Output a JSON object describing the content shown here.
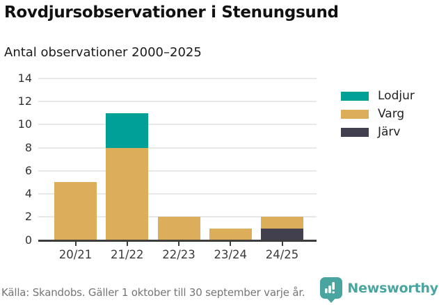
{
  "title": "Rovdjursobservationer i Stenungsund",
  "subtitle": "Antal observationer 2000–2025",
  "chart_data": {
    "type": "bar",
    "stacked": true,
    "title": "Rovdjursobservationer i Stenungsund",
    "subtitle": "Antal observationer 2000–2025",
    "categories": [
      "20/21",
      "21/22",
      "22/23",
      "23/24",
      "24/25"
    ],
    "series": [
      {
        "name": "Lodjur",
        "color": "#00a096",
        "values": [
          0,
          3,
          0,
          0,
          0
        ]
      },
      {
        "name": "Varg",
        "color": "#dcae5a",
        "values": [
          5,
          8,
          2,
          1,
          1
        ]
      },
      {
        "name": "Järv",
        "color": "#423f4e",
        "values": [
          0,
          0,
          0,
          0,
          1
        ]
      }
    ],
    "stack_order_bottom_to_top": [
      "Järv",
      "Varg",
      "Lodjur"
    ],
    "totals": [
      5,
      11,
      2,
      1,
      2
    ],
    "ylim": [
      0,
      14
    ],
    "yticks": [
      0,
      2,
      4,
      6,
      8,
      10,
      12,
      14
    ],
    "grid": true,
    "legend_position": "right"
  },
  "colors": {
    "lodjur": "#00a096",
    "varg": "#dcae5a",
    "jarv": "#423f4e",
    "gridline": "#e8e8e8",
    "axis": "#3d3d3d",
    "brand_teal": "#4aa5a0"
  },
  "footer": {
    "source": "Källa: Skandobs. Gäller 1 oktober till 30 september varje år.",
    "brand": "Newsworthy"
  }
}
